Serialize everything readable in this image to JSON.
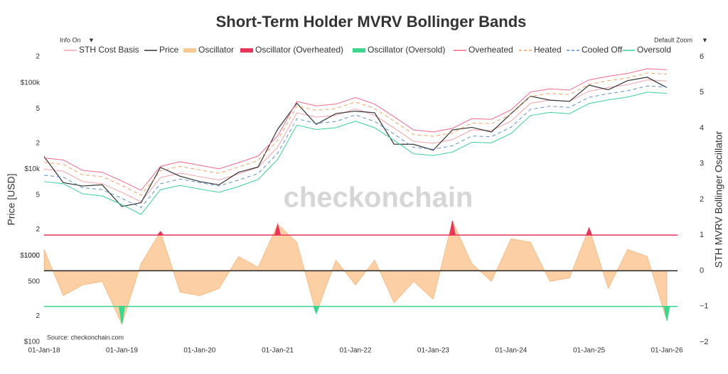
{
  "chart_data": {
    "type": "line",
    "title": "Short-Term Holder MVRV Bollinger Bands",
    "y_label": "Price [USD]",
    "y2_label": "STH MVRV Bollinger Oscillator",
    "source": "Source: checkonchain.com",
    "watermark": "checkonchain",
    "controls": [
      "Info On",
      "Default Zoom"
    ],
    "y_log": true,
    "ylim": [
      100,
      200000
    ],
    "yticks": [
      {
        "value": 100,
        "label": "$100"
      },
      {
        "value": 200,
        "label": "2"
      },
      500,
      1000,
      {
        "value": 1000,
        "label": "$1000"
      },
      {
        "value": 2000,
        "label": "2"
      },
      {
        "value": 5000,
        "label": "5"
      },
      {
        "value": 10000,
        "label": "$10k"
      },
      {
        "value": 20000,
        "label": "2"
      },
      {
        "value": 50000,
        "label": "5"
      },
      {
        "value": 100000,
        "label": "$100k"
      },
      {
        "value": 200000,
        "label": "2"
      }
    ],
    "y2lim": [
      -2,
      6
    ],
    "y2ticks": [
      {
        "value": -2,
        "label": "−2"
      },
      {
        "value": -1,
        "label": "−1"
      },
      0,
      1,
      2,
      3,
      4,
      5,
      6
    ],
    "xlim": [
      "2018-01-01",
      "2026-02-20"
    ],
    "xticks": [
      {
        "value": "2018-01-01",
        "label": "01-Jan-18"
      },
      {
        "value": "2019-01-01",
        "label": "01-Jan-19"
      },
      {
        "value": "2020-01-01",
        "label": "01-Jan-20"
      },
      {
        "value": "2021-01-01",
        "label": "01-Jan-21"
      },
      {
        "value": "2022-01-01",
        "label": "01-Jan-22"
      },
      {
        "value": "2023-01-01",
        "label": "01-Jan-23"
      },
      {
        "value": "2024-01-01",
        "label": "01-Jan-24"
      },
      {
        "value": "2025-01-01",
        "label": "01-Jan-25"
      },
      {
        "value": "2026-01-01",
        "label": "01-Jan-26"
      }
    ],
    "reference_lines": [
      {
        "value": 1,
        "color": "#e8365a"
      },
      {
        "value": 0,
        "color": "#222222"
      },
      {
        "value": -1,
        "color": "#3dd68c"
      }
    ],
    "x": [
      "2018-01-01",
      "2018-04-01",
      "2018-07-01",
      "2018-10-01",
      "2019-01-01",
      "2019-04-01",
      "2019-07-01",
      "2019-10-01",
      "2020-01-01",
      "2020-04-01",
      "2020-07-01",
      "2020-10-01",
      "2021-01-01",
      "2021-04-01",
      "2021-07-01",
      "2021-10-01",
      "2022-01-01",
      "2022-04-01",
      "2022-07-01",
      "2022-10-01",
      "2023-01-01",
      "2023-04-01",
      "2023-07-01",
      "2023-10-01",
      "2024-01-01",
      "2024-04-01",
      "2024-07-01",
      "2024-10-01",
      "2025-01-01",
      "2025-04-01",
      "2025-07-01",
      "2025-10-01",
      "2026-01-01"
    ],
    "series": [
      {
        "name": "STH Cost Basis",
        "color": "#f4a3a8",
        "style": "line",
        "values": [
          10000,
          9500,
          7200,
          6800,
          5400,
          4200,
          8000,
          9000,
          8200,
          7500,
          8800,
          10500,
          18000,
          45000,
          40000,
          42000,
          50000,
          42000,
          30000,
          21000,
          20000,
          22000,
          28500,
          28000,
          36000,
          58000,
          63000,
          61000,
          80000,
          88000,
          95000,
          108000,
          105000
        ]
      },
      {
        "name": "Price",
        "color": "#333333",
        "style": "line",
        "values": [
          14000,
          7000,
          6400,
          6600,
          3700,
          4100,
          10500,
          8300,
          7200,
          6600,
          9200,
          10600,
          29000,
          58000,
          33000,
          44000,
          47000,
          45000,
          19500,
          19400,
          16600,
          28500,
          30500,
          27000,
          44000,
          70000,
          63000,
          61000,
          94000,
          83000,
          106000,
          116000,
          88000
        ]
      },
      {
        "name": "Oscillator",
        "color": "#fbc894",
        "style": "area",
        "axis": "y2",
        "values": [
          0.6,
          -0.7,
          -0.4,
          -0.3,
          -1.5,
          0.2,
          1.1,
          -0.6,
          -0.7,
          -0.5,
          0.4,
          0.1,
          1.3,
          0.8,
          -1.2,
          0.3,
          -0.4,
          0.3,
          -0.9,
          -0.3,
          -0.8,
          1.4,
          0.2,
          -0.3,
          0.9,
          0.8,
          -0.3,
          -0.2,
          1.2,
          -0.5,
          0.6,
          0.4,
          -1.4
        ]
      },
      {
        "name": "Oscillator (Overheated)",
        "color": "#e8365a",
        "style": "spike",
        "axis": "y2",
        "base": 1,
        "values": [
          null,
          null,
          null,
          null,
          null,
          null,
          1.1,
          null,
          null,
          null,
          null,
          null,
          1.3,
          null,
          null,
          null,
          null,
          null,
          null,
          null,
          null,
          1.4,
          null,
          null,
          null,
          null,
          null,
          null,
          1.2,
          null,
          null,
          null,
          null
        ]
      },
      {
        "name": "Oscillator (Oversold)",
        "color": "#3dd68c",
        "style": "spike",
        "axis": "y2",
        "base": -1,
        "values": [
          null,
          null,
          null,
          null,
          -1.5,
          null,
          null,
          null,
          null,
          null,
          null,
          null,
          null,
          null,
          -1.2,
          null,
          null,
          null,
          null,
          null,
          null,
          null,
          null,
          null,
          null,
          null,
          null,
          null,
          null,
          null,
          null,
          null,
          -1.4
        ]
      },
      {
        "name": "Overheated",
        "color": "#f06a8a",
        "style": "line",
        "values": [
          13500,
          12800,
          9700,
          9200,
          7300,
          5700,
          10800,
          12200,
          11100,
          10100,
          11900,
          14200,
          24300,
          60800,
          54000,
          56700,
          67500,
          56700,
          40500,
          28400,
          27000,
          29700,
          38500,
          37800,
          48600,
          78300,
          85000,
          82400,
          108000,
          118800,
          128300,
          145800,
          141800
        ]
      },
      {
        "name": "Heated",
        "color": "#f5a25d",
        "style": "dashed",
        "values": [
          12000,
          11400,
          8600,
          8200,
          6500,
          5000,
          9600,
          10800,
          9800,
          9000,
          10600,
          12600,
          21600,
          54000,
          48000,
          50400,
          60000,
          50400,
          36000,
          25200,
          24000,
          26400,
          34200,
          33600,
          43200,
          69600,
          75600,
          73200,
          96000,
          105600,
          114000,
          129600,
          126000
        ]
      },
      {
        "name": "Cooled Off",
        "color": "#5a8fd6",
        "style": "dashed",
        "values": [
          8500,
          8100,
          6100,
          5800,
          4600,
          3600,
          6800,
          7700,
          7000,
          6400,
          7500,
          8900,
          15300,
          38300,
          34000,
          35700,
          42500,
          35700,
          25500,
          17900,
          17000,
          18700,
          24200,
          23800,
          30600,
          49300,
          53600,
          51900,
          68000,
          74800,
          80800,
          91800,
          89300
        ]
      },
      {
        "name": "Oversold",
        "color": "#3ccf9c",
        "style": "line",
        "values": [
          7200,
          6800,
          5200,
          4900,
          3900,
          3000,
          5800,
          6500,
          5900,
          5400,
          6300,
          7600,
          13000,
          32400,
          28800,
          30200,
          36000,
          30200,
          21600,
          15100,
          14400,
          15800,
          20500,
          20200,
          25900,
          41800,
          45400,
          43900,
          57600,
          63400,
          68400,
          77800,
          75600
        ]
      }
    ]
  }
}
